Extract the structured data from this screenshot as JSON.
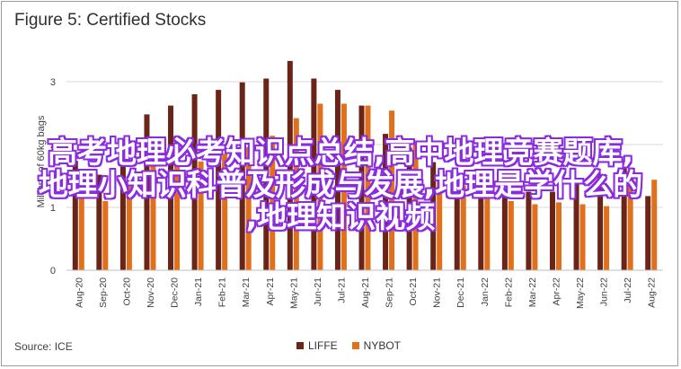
{
  "chart_data": {
    "type": "bar",
    "title": "Figure 5: Certified Stocks",
    "ylabel": "Millions of 60kg bags",
    "xlabel": "",
    "ylim": [
      0,
      3.5
    ],
    "yticks": [
      "0",
      "1",
      "2",
      "3"
    ],
    "categories": [
      "Aug-20",
      "Sep-20",
      "Oct-20",
      "Nov-20",
      "Dec-20",
      "Jan-21",
      "Feb-21",
      "Mar-21",
      "Apr-21",
      "May-21",
      "Jun-21",
      "Jul-21",
      "Aug-21",
      "Sep-21",
      "Oct-21",
      "Nov-21",
      "Dec-21",
      "Jan-22",
      "Feb-22",
      "Mar-22",
      "Apr-22",
      "May-22",
      "Jun-22",
      "Jul-22",
      "Aug-22"
    ],
    "series": [
      {
        "name": "LIFFE",
        "color": "#6b2418",
        "values": [
          1.74,
          1.52,
          2.08,
          2.48,
          2.62,
          2.8,
          2.87,
          2.99,
          3.05,
          3.33,
          3.05,
          2.87,
          2.62,
          2.17,
          1.95,
          1.72,
          1.5,
          1.48,
          1.3,
          1.25,
          1.25,
          1.4,
          1.53,
          1.62,
          1.18
        ]
      },
      {
        "name": "NYBOT",
        "color": "#e0701c",
        "values": [
          1.2,
          1.1,
          1.4,
          1.7,
          1.72,
          1.73,
          1.85,
          1.96,
          2.14,
          2.42,
          2.65,
          2.65,
          2.62,
          2.54,
          2.0,
          1.48,
          1.35,
          1.2,
          1.1,
          1.05,
          1.08,
          1.05,
          1.02,
          1.53,
          1.44
        ]
      }
    ],
    "grid": true,
    "legend": "bottom"
  },
  "source": "Source: ICE",
  "watermark": {
    "line1": "高考地理必考知识点总结,高中地理竞赛题库,",
    "line2": "地理小知识科普及形成与发展,地理是学什么的",
    "line3": ",地理知识视频"
  }
}
